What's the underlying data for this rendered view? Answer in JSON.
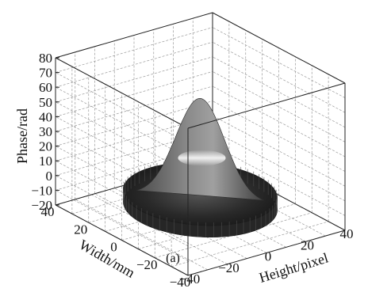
{
  "chart_data": {
    "type": "surface",
    "panel_label": "(a)",
    "zlabel": "Phase/rad",
    "xlabel": "Height/pixel",
    "ylabel": "Width/mm",
    "zlim": [
      -20,
      80
    ],
    "zticks": [
      "80",
      "70",
      "60",
      "50",
      "40",
      "30",
      "20",
      "10",
      "0",
      "−10",
      "−20"
    ],
    "xlim": [
      -40,
      40
    ],
    "xticks": [
      "−40",
      "−20",
      "0",
      "20",
      "40"
    ],
    "ylim": [
      -40,
      40
    ],
    "yticks": [
      "40",
      "20",
      "0",
      "−20",
      "−40"
    ],
    "grid": true,
    "surface": {
      "description_free": true,
      "peak_value": 61,
      "base_value": -7,
      "rim_value": -4,
      "center_x": 0,
      "center_y": 0
    },
    "colors": {
      "surface_dark": "#3a3a3a",
      "surface_light": "#e6e6e6",
      "grid": "#9a9a9a",
      "axis": "#222222"
    }
  }
}
